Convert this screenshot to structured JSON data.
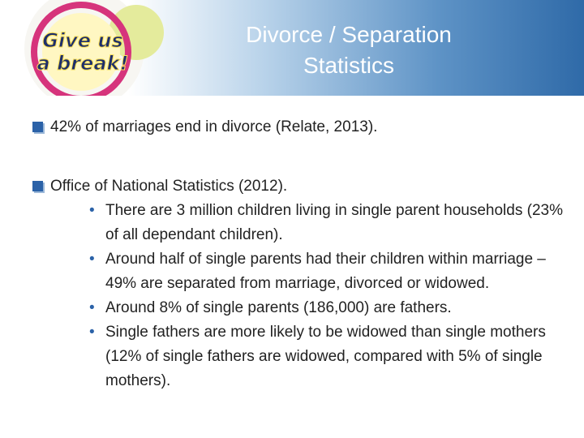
{
  "header": {
    "logo": [
      "Give us",
      "a break!"
    ],
    "title": [
      "Divorce / Separation",
      "Statistics"
    ]
  },
  "bullets": [
    {
      "text": "42% of marriages end in divorce (Relate, 2013).",
      "items": []
    },
    {
      "text": "Office of National Statistics (2012).",
      "items": [
        "There are 3 million children living in single parent households (23% of all dependant children).",
        "Around half of single parents had their children within marriage – 49% are separated from marriage, divorced or widowed.",
        "Around 8% of single parents (186,000) are fathers.",
        "Single fathers are more likely to be widowed than single mothers (12% of single fathers are widowed, compared with 5% of single mothers)."
      ]
    }
  ]
}
